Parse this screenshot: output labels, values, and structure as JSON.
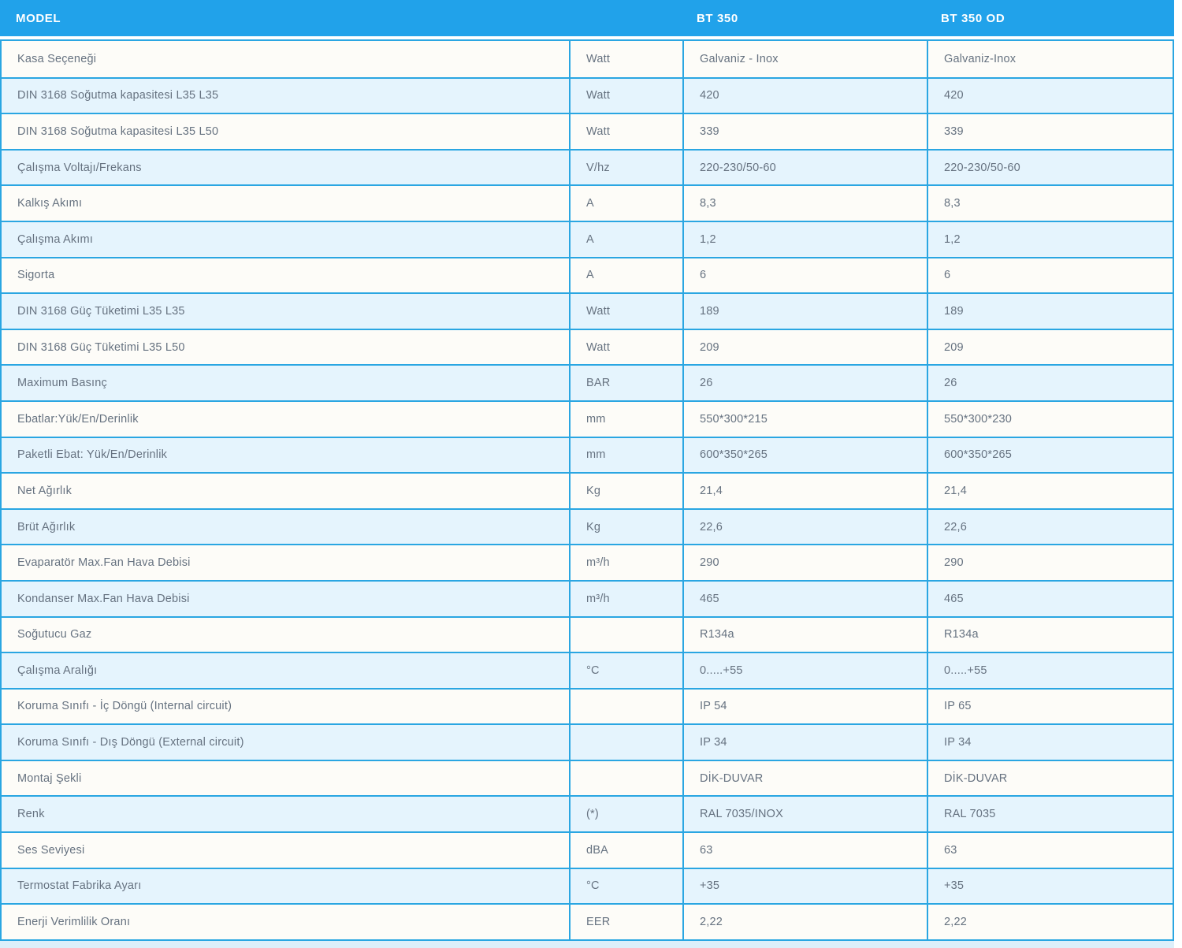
{
  "colors": {
    "header_bg": "#21a2ea",
    "border": "#2aa6e2",
    "row_white": "#fdfcf8",
    "row_alt": "#e5f4fd",
    "text": "#667280",
    "header_text": "#ffffff"
  },
  "table": {
    "header": {
      "model_label": "MODEL",
      "unit_label": "",
      "col1_label": "BT 350",
      "col2_label": "BT 350 OD"
    },
    "rows": [
      {
        "label": "Kasa Seçeneği",
        "unit": "Watt",
        "bt350": "Galvaniz - Inox",
        "bt350od": "Galvaniz-Inox"
      },
      {
        "label": "DIN 3168 Soğutma kapasitesi L35 L35",
        "unit": "Watt",
        "bt350": "420",
        "bt350od": "420"
      },
      {
        "label": "DIN 3168 Soğutma kapasitesi L35 L50",
        "unit": "Watt",
        "bt350": "339",
        "bt350od": "339"
      },
      {
        "label": "Çalışma Voltajı/Frekans",
        "unit": "V/hz",
        "bt350": "220-230/50-60",
        "bt350od": "220-230/50-60"
      },
      {
        "label": "Kalkış Akımı",
        "unit": "A",
        "bt350": "8,3",
        "bt350od": "8,3"
      },
      {
        "label": "Çalışma Akımı",
        "unit": "A",
        "bt350": "1,2",
        "bt350od": "1,2"
      },
      {
        "label": "Sigorta",
        "unit": "A",
        "bt350": "6",
        "bt350od": "6"
      },
      {
        "label": "DIN 3168 Güç Tüketimi L35 L35",
        "unit": "Watt",
        "bt350": "189",
        "bt350od": "189"
      },
      {
        "label": "DIN 3168 Güç Tüketimi L35 L50",
        "unit": "Watt",
        "bt350": "209",
        "bt350od": "209"
      },
      {
        "label": "Maximum Basınç",
        "unit": "BAR",
        "bt350": "26",
        "bt350od": "26"
      },
      {
        "label": "Ebatlar:Yük/En/Derinlik",
        "unit": "mm",
        "bt350": "550*300*215",
        "bt350od": "550*300*230"
      },
      {
        "label": "Paketli Ebat: Yük/En/Derinlik",
        "unit": "mm",
        "bt350": "600*350*265",
        "bt350od": "600*350*265"
      },
      {
        "label": "Net Ağırlık",
        "unit": "Kg",
        "bt350": "21,4",
        "bt350od": "21,4"
      },
      {
        "label": "Brüt Ağırlık",
        "unit": "Kg",
        "bt350": "22,6",
        "bt350od": "22,6"
      },
      {
        "label": "Evaparatör Max.Fan Hava Debisi",
        "unit": "m³/h",
        "bt350": "290",
        "bt350od": "290"
      },
      {
        "label": "Kondanser Max.Fan Hava Debisi",
        "unit": "m³/h",
        "bt350": "465",
        "bt350od": "465"
      },
      {
        "label": "Soğutucu Gaz",
        "unit": "",
        "bt350": "R134a",
        "bt350od": "R134a"
      },
      {
        "label": "Çalışma Aralığı",
        "unit": "°C",
        "bt350": "0.....+55",
        "bt350od": "0.....+55"
      },
      {
        "label": "Koruma Sınıfı - İç Döngü (Internal circuit)",
        "unit": "",
        "bt350": "IP 54",
        "bt350od": "IP 65"
      },
      {
        "label": "Koruma Sınıfı - Dış Döngü (External circuit)",
        "unit": "",
        "bt350": "IP 34",
        "bt350od": "IP 34"
      },
      {
        "label": "Montaj Şekli",
        "unit": "",
        "bt350": "DİK-DUVAR",
        "bt350od": "DİK-DUVAR"
      },
      {
        "label": "Renk",
        "unit": "(*)",
        "bt350": "RAL 7035/INOX",
        "bt350od": "RAL 7035"
      },
      {
        "label": "Ses Seviyesi",
        "unit": "dBA",
        "bt350": "63",
        "bt350od": "63"
      },
      {
        "label": "Termostat Fabrika Ayarı",
        "unit": "°C",
        "bt350": "+35",
        "bt350od": "+35"
      },
      {
        "label": "Enerji Verimlilik Oranı",
        "unit": "EER",
        "bt350": "2,22",
        "bt350od": "2,22"
      }
    ]
  }
}
